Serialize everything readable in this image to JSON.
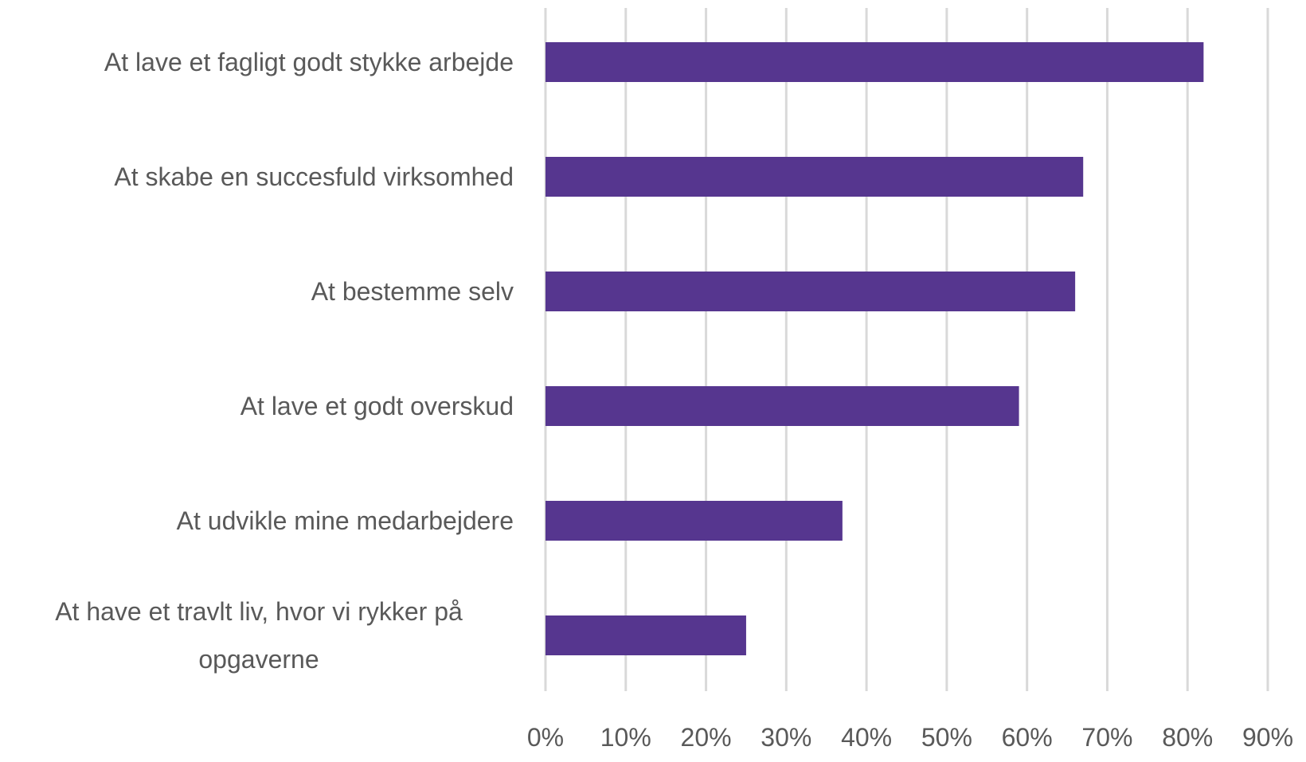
{
  "chart_data": {
    "type": "bar",
    "orientation": "horizontal",
    "categories": [
      "At lave et fagligt godt stykke arbejde",
      "At skabe en succesfuld virksomhed",
      "At bestemme selv",
      "At lave et godt overskud",
      "At udvikle mine medarbejdere",
      "At have et travlt liv, hvor vi rykker på opgaverne"
    ],
    "values": [
      82,
      67,
      66,
      59,
      37,
      25
    ],
    "color": "#56368f",
    "xlim": [
      0,
      90
    ],
    "xticks": [
      {
        "value": 0,
        "label": "0%"
      },
      {
        "value": 10,
        "label": "10%"
      },
      {
        "value": 20,
        "label": "20%"
      },
      {
        "value": 30,
        "label": "30%"
      },
      {
        "value": 40,
        "label": "40%"
      },
      {
        "value": 50,
        "label": "50%"
      },
      {
        "value": 60,
        "label": "60%"
      },
      {
        "value": 70,
        "label": "70%"
      },
      {
        "value": 80,
        "label": "80%"
      },
      {
        "value": 90,
        "label": "90%"
      }
    ],
    "grid": true
  }
}
